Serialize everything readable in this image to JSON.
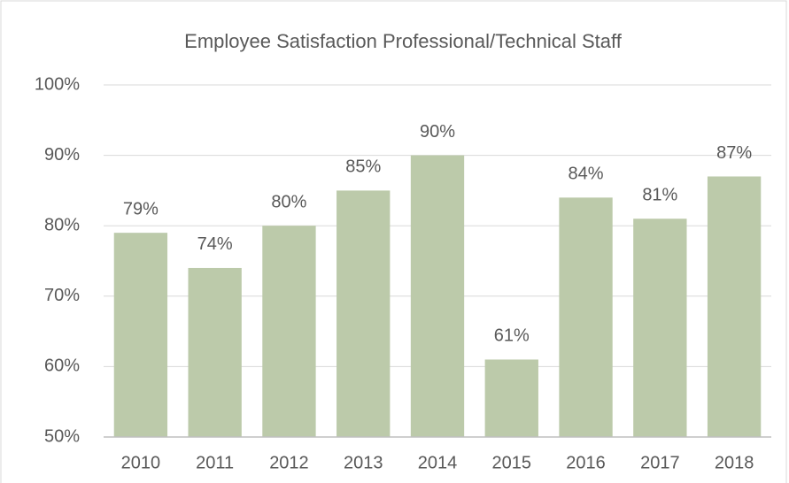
{
  "chart_data": {
    "type": "bar",
    "title": "Employee Satisfaction Professional/Technical Staff",
    "categories": [
      "2010",
      "2011",
      "2012",
      "2013",
      "2014",
      "2015",
      "2016",
      "2017",
      "2018"
    ],
    "values": [
      79,
      74,
      80,
      85,
      90,
      61,
      84,
      81,
      87
    ],
    "value_labels": [
      "79%",
      "74%",
      "80%",
      "85%",
      "90%",
      "61%",
      "84%",
      "81%",
      "87%"
    ],
    "color": "#bccaaa",
    "ylim": [
      50,
      100
    ],
    "yticks": [
      {
        "value": 50,
        "label": "50%"
      },
      {
        "value": 60,
        "label": "60%"
      },
      {
        "value": 70,
        "label": "70%"
      },
      {
        "value": 80,
        "label": "80%"
      },
      {
        "value": 90,
        "label": "90%"
      },
      {
        "value": 100,
        "label": "100%"
      }
    ],
    "grid": true
  }
}
